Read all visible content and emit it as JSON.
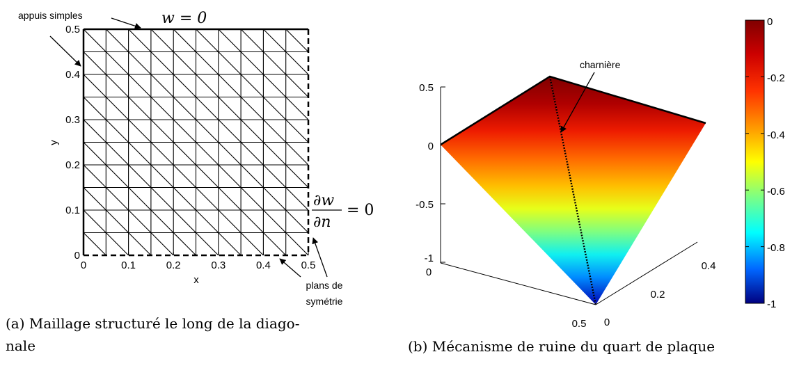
{
  "panel_a": {
    "x_ticks": [
      "0",
      "0.1",
      "0.2",
      "0.3",
      "0.4",
      "0.5"
    ],
    "y_ticks": [
      "0",
      "0.1",
      "0.2",
      "0.3",
      "0.4",
      "0.5"
    ],
    "xlabel": "x",
    "ylabel": "y",
    "mesh_divisions": 10,
    "ann_supports": "appuis simples",
    "ann_symmetry_1": "plans de",
    "ann_symmetry_2": "symétrie",
    "bc_top": "w = 0",
    "bc_right_num": "∂w",
    "bc_right_den": "∂n",
    "bc_right_rhs": "= 0",
    "caption_line1": "(a) Maillage structuré le long de la diago-",
    "caption_line2": "nale"
  },
  "panel_b": {
    "z_ticks": [
      "0.5",
      "0",
      "-0.5",
      "-1"
    ],
    "x_ticks": [
      "0",
      "0.5"
    ],
    "y_ticks": [
      "0",
      "0.2",
      "0.4"
    ],
    "ann_hinge": "charnière",
    "colorbar_ticks": [
      "0",
      "-0.2",
      "-0.4",
      "-0.6",
      "-0.8",
      "-1"
    ],
    "caption": "(b) Mécanisme de ruine du quart de plaque"
  }
}
